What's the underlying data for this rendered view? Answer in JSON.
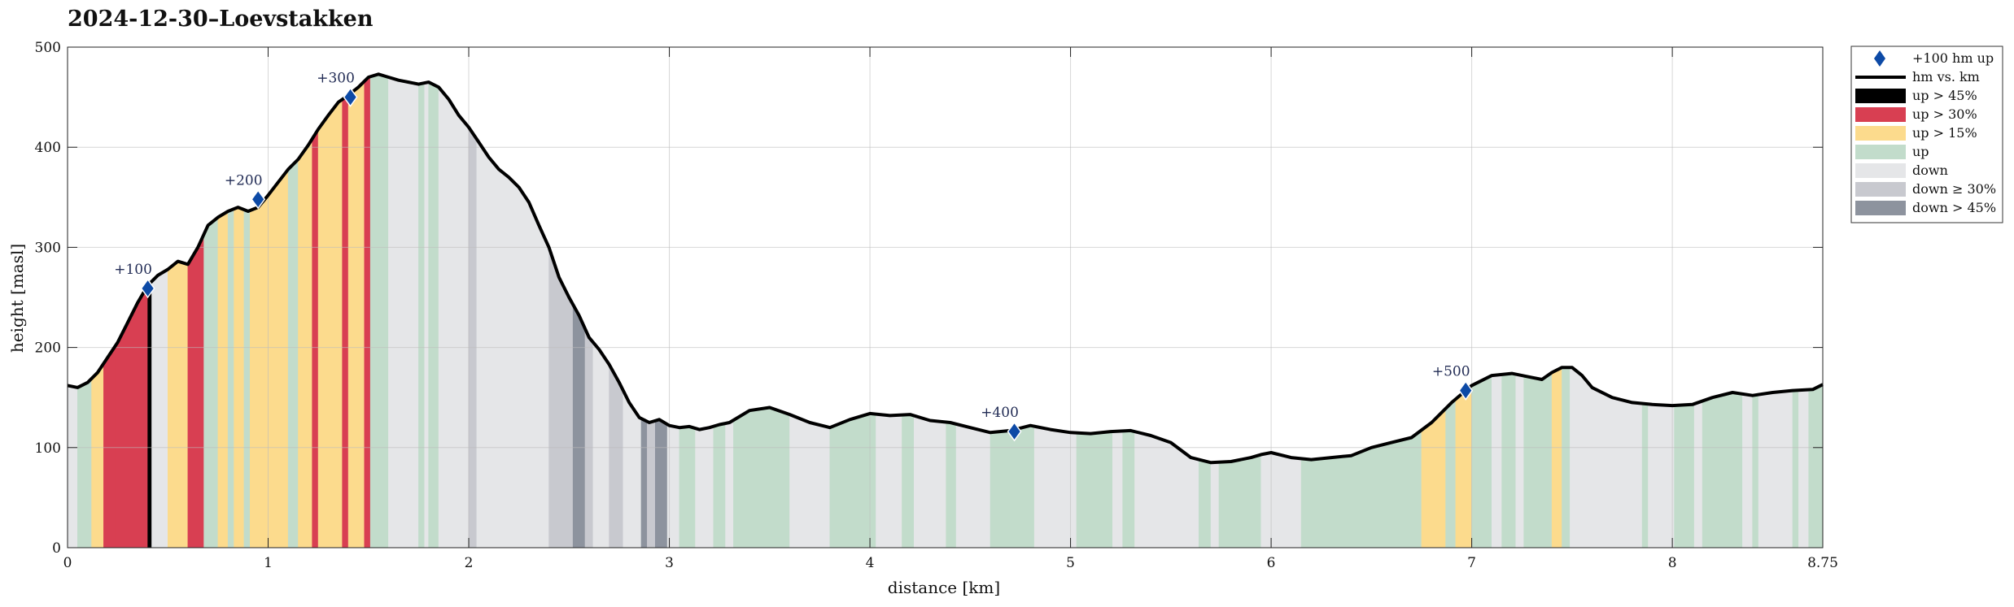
{
  "chart_data": {
    "type": "area",
    "title": "2024-12-30–Loevstakken",
    "xlabel": "distance [km]",
    "ylabel": "height [masl]",
    "xlim": [
      0,
      8.75
    ],
    "ylim": [
      0,
      500
    ],
    "xticks": [
      "0",
      "1",
      "2",
      "3",
      "4",
      "5",
      "6",
      "7",
      "8",
      "8.75"
    ],
    "yticks": [
      "0",
      "100",
      "200",
      "300",
      "400",
      "500"
    ],
    "grid": true,
    "legend_position": "outside-right-top",
    "legend": [
      {
        "label": "+100 hm up",
        "kind": "marker",
        "color": "#0d4aa6"
      },
      {
        "label": "hm vs. km",
        "kind": "line",
        "color": "#000000"
      },
      {
        "label": "up > 45%",
        "kind": "patch",
        "color": "#000000"
      },
      {
        "label": "up > 30%",
        "kind": "patch",
        "color": "#d83f52"
      },
      {
        "label": "up > 15%",
        "kind": "patch",
        "color": "#fcdb8d"
      },
      {
        "label": "up",
        "kind": "patch",
        "color": "#c2dccb"
      },
      {
        "label": "down",
        "kind": "patch",
        "color": "#e5e6e8"
      },
      {
        "label": "down ≥ 30%",
        "kind": "patch",
        "color": "#c8c9cf"
      },
      {
        "label": "down > 45%",
        "kind": "patch",
        "color": "#8d939e"
      }
    ],
    "series": [
      {
        "name": "hm vs. km",
        "x": [
          0,
          0.05,
          0.1,
          0.15,
          0.2,
          0.25,
          0.3,
          0.35,
          0.4,
          0.45,
          0.5,
          0.55,
          0.6,
          0.65,
          0.7,
          0.75,
          0.8,
          0.85,
          0.9,
          0.95,
          1.0,
          1.05,
          1.1,
          1.15,
          1.2,
          1.25,
          1.3,
          1.35,
          1.4,
          1.45,
          1.5,
          1.55,
          1.6,
          1.65,
          1.7,
          1.75,
          1.8,
          1.85,
          1.9,
          1.95,
          2.0,
          2.05,
          2.1,
          2.15,
          2.2,
          2.25,
          2.3,
          2.35,
          2.4,
          2.45,
          2.5,
          2.55,
          2.6,
          2.65,
          2.7,
          2.75,
          2.8,
          2.85,
          2.9,
          2.95,
          3.0,
          3.05,
          3.1,
          3.15,
          3.2,
          3.25,
          3.3,
          3.4,
          3.5,
          3.6,
          3.7,
          3.8,
          3.9,
          4.0,
          4.1,
          4.2,
          4.3,
          4.4,
          4.5,
          4.6,
          4.7,
          4.8,
          4.9,
          5.0,
          5.1,
          5.2,
          5.3,
          5.4,
          5.5,
          5.6,
          5.7,
          5.8,
          5.9,
          5.95,
          6.0,
          6.1,
          6.2,
          6.3,
          6.4,
          6.5,
          6.6,
          6.7,
          6.8,
          6.9,
          7.0,
          7.1,
          7.2,
          7.3,
          7.35,
          7.4,
          7.45,
          7.5,
          7.55,
          7.6,
          7.7,
          7.8,
          7.9,
          8.0,
          8.1,
          8.2,
          8.3,
          8.4,
          8.5,
          8.6,
          8.7,
          8.75
        ],
        "y": [
          162,
          160,
          165,
          175,
          190,
          205,
          225,
          245,
          262,
          272,
          278,
          286,
          283,
          300,
          322,
          330,
          336,
          340,
          336,
          340,
          352,
          365,
          378,
          388,
          402,
          418,
          432,
          445,
          452,
          460,
          470,
          473,
          470,
          467,
          465,
          463,
          465,
          460,
          448,
          432,
          420,
          405,
          390,
          378,
          370,
          360,
          345,
          322,
          300,
          270,
          250,
          232,
          210,
          198,
          183,
          165,
          145,
          130,
          125,
          128,
          122,
          120,
          121,
          118,
          120,
          123,
          125,
          137,
          140,
          133,
          125,
          120,
          128,
          134,
          132,
          133,
          127,
          125,
          120,
          115,
          117,
          122,
          118,
          115,
          114,
          116,
          117,
          112,
          105,
          90,
          85,
          86,
          90,
          93,
          95,
          90,
          88,
          90,
          92,
          100,
          105,
          110,
          125,
          145,
          162,
          172,
          174,
          170,
          168,
          175,
          180,
          180,
          172,
          160,
          150,
          145,
          143,
          142,
          143,
          150,
          155,
          152,
          155,
          157,
          158,
          163
        ]
      }
    ],
    "segments": [
      {
        "x0": 0.0,
        "x1": 0.05,
        "cat": "down"
      },
      {
        "x0": 0.05,
        "x1": 0.12,
        "cat": "up"
      },
      {
        "x0": 0.12,
        "x1": 0.18,
        "cat": "up > 15%"
      },
      {
        "x0": 0.18,
        "x1": 0.24,
        "cat": "up > 30%"
      },
      {
        "x0": 0.24,
        "x1": 0.4,
        "cat": "up > 30%"
      },
      {
        "x0": 0.4,
        "x1": 0.42,
        "cat": "up > 45%"
      },
      {
        "x0": 0.42,
        "x1": 0.5,
        "cat": "down"
      },
      {
        "x0": 0.5,
        "x1": 0.6,
        "cat": "up > 15%"
      },
      {
        "x0": 0.6,
        "x1": 0.68,
        "cat": "up > 30%"
      },
      {
        "x0": 0.68,
        "x1": 0.75,
        "cat": "up"
      },
      {
        "x0": 0.75,
        "x1": 0.8,
        "cat": "up > 15%"
      },
      {
        "x0": 0.8,
        "x1": 0.83,
        "cat": "up"
      },
      {
        "x0": 0.83,
        "x1": 0.88,
        "cat": "up > 15%"
      },
      {
        "x0": 0.88,
        "x1": 0.91,
        "cat": "up"
      },
      {
        "x0": 0.91,
        "x1": 1.1,
        "cat": "up > 15%"
      },
      {
        "x0": 1.1,
        "x1": 1.15,
        "cat": "up"
      },
      {
        "x0": 1.15,
        "x1": 1.22,
        "cat": "up > 15%"
      },
      {
        "x0": 1.22,
        "x1": 1.25,
        "cat": "up > 30%"
      },
      {
        "x0": 1.25,
        "x1": 1.37,
        "cat": "up > 15%"
      },
      {
        "x0": 1.37,
        "x1": 1.4,
        "cat": "up > 30%"
      },
      {
        "x0": 1.4,
        "x1": 1.48,
        "cat": "up > 15%"
      },
      {
        "x0": 1.48,
        "x1": 1.51,
        "cat": "up > 30%"
      },
      {
        "x0": 1.51,
        "x1": 1.6,
        "cat": "up"
      },
      {
        "x0": 1.6,
        "x1": 1.75,
        "cat": "down"
      },
      {
        "x0": 1.75,
        "x1": 1.78,
        "cat": "up"
      },
      {
        "x0": 1.78,
        "x1": 1.8,
        "cat": "down"
      },
      {
        "x0": 1.8,
        "x1": 1.85,
        "cat": "up"
      },
      {
        "x0": 1.85,
        "x1": 2.0,
        "cat": "down"
      },
      {
        "x0": 2.0,
        "x1": 2.04,
        "cat": "down ≥ 30%"
      },
      {
        "x0": 2.04,
        "x1": 2.4,
        "cat": "down"
      },
      {
        "x0": 2.4,
        "x1": 2.52,
        "cat": "down ≥ 30%"
      },
      {
        "x0": 2.52,
        "x1": 2.58,
        "cat": "down > 45%"
      },
      {
        "x0": 2.58,
        "x1": 2.62,
        "cat": "down ≥ 30%"
      },
      {
        "x0": 2.62,
        "x1": 2.7,
        "cat": "down"
      },
      {
        "x0": 2.7,
        "x1": 2.77,
        "cat": "down ≥ 30%"
      },
      {
        "x0": 2.77,
        "x1": 2.86,
        "cat": "down"
      },
      {
        "x0": 2.86,
        "x1": 2.89,
        "cat": "down > 45%"
      },
      {
        "x0": 2.89,
        "x1": 2.93,
        "cat": "down ≥ 30%"
      },
      {
        "x0": 2.93,
        "x1": 2.99,
        "cat": "down > 45%"
      },
      {
        "x0": 2.99,
        "x1": 3.05,
        "cat": "down"
      },
      {
        "x0": 3.05,
        "x1": 3.13,
        "cat": "up"
      },
      {
        "x0": 3.13,
        "x1": 3.22,
        "cat": "down"
      },
      {
        "x0": 3.22,
        "x1": 3.28,
        "cat": "up"
      },
      {
        "x0": 3.28,
        "x1": 3.32,
        "cat": "down"
      },
      {
        "x0": 3.32,
        "x1": 3.6,
        "cat": "up"
      },
      {
        "x0": 3.6,
        "x1": 3.8,
        "cat": "down"
      },
      {
        "x0": 3.8,
        "x1": 4.03,
        "cat": "up"
      },
      {
        "x0": 4.03,
        "x1": 4.16,
        "cat": "down"
      },
      {
        "x0": 4.16,
        "x1": 4.22,
        "cat": "up"
      },
      {
        "x0": 4.22,
        "x1": 4.38,
        "cat": "down"
      },
      {
        "x0": 4.38,
        "x1": 4.43,
        "cat": "up"
      },
      {
        "x0": 4.43,
        "x1": 4.6,
        "cat": "down"
      },
      {
        "x0": 4.6,
        "x1": 4.82,
        "cat": "up"
      },
      {
        "x0": 4.82,
        "x1": 5.03,
        "cat": "down"
      },
      {
        "x0": 5.03,
        "x1": 5.21,
        "cat": "up"
      },
      {
        "x0": 5.21,
        "x1": 5.26,
        "cat": "down"
      },
      {
        "x0": 5.26,
        "x1": 5.32,
        "cat": "up"
      },
      {
        "x0": 5.32,
        "x1": 5.64,
        "cat": "down"
      },
      {
        "x0": 5.64,
        "x1": 5.7,
        "cat": "up"
      },
      {
        "x0": 5.7,
        "x1": 5.74,
        "cat": "down"
      },
      {
        "x0": 5.74,
        "x1": 5.95,
        "cat": "up"
      },
      {
        "x0": 5.95,
        "x1": 6.15,
        "cat": "down"
      },
      {
        "x0": 6.15,
        "x1": 6.75,
        "cat": "up"
      },
      {
        "x0": 6.75,
        "x1": 6.87,
        "cat": "up > 15%"
      },
      {
        "x0": 6.87,
        "x1": 6.92,
        "cat": "up"
      },
      {
        "x0": 6.92,
        "x1": 7.0,
        "cat": "up > 15%"
      },
      {
        "x0": 7.0,
        "x1": 7.1,
        "cat": "up"
      },
      {
        "x0": 7.1,
        "x1": 7.15,
        "cat": "down"
      },
      {
        "x0": 7.15,
        "x1": 7.22,
        "cat": "up"
      },
      {
        "x0": 7.22,
        "x1": 7.26,
        "cat": "down"
      },
      {
        "x0": 7.26,
        "x1": 7.4,
        "cat": "up"
      },
      {
        "x0": 7.4,
        "x1": 7.45,
        "cat": "up > 15%"
      },
      {
        "x0": 7.45,
        "x1": 7.49,
        "cat": "up"
      },
      {
        "x0": 7.49,
        "x1": 7.85,
        "cat": "down"
      },
      {
        "x0": 7.85,
        "x1": 7.88,
        "cat": "up"
      },
      {
        "x0": 7.88,
        "x1": 8.01,
        "cat": "down"
      },
      {
        "x0": 8.01,
        "x1": 8.11,
        "cat": "up"
      },
      {
        "x0": 8.11,
        "x1": 8.15,
        "cat": "down"
      },
      {
        "x0": 8.15,
        "x1": 8.35,
        "cat": "up"
      },
      {
        "x0": 8.35,
        "x1": 8.4,
        "cat": "down"
      },
      {
        "x0": 8.4,
        "x1": 8.43,
        "cat": "up"
      },
      {
        "x0": 8.43,
        "x1": 8.6,
        "cat": "down"
      },
      {
        "x0": 8.6,
        "x1": 8.63,
        "cat": "up"
      },
      {
        "x0": 8.63,
        "x1": 8.68,
        "cat": "down"
      },
      {
        "x0": 8.68,
        "x1": 8.75,
        "cat": "up"
      }
    ],
    "markers": [
      {
        "x": 0.4,
        "y": 259,
        "label": "+100"
      },
      {
        "x": 0.95,
        "y": 348,
        "label": "+200"
      },
      {
        "x": 1.41,
        "y": 450,
        "label": "+300"
      },
      {
        "x": 4.72,
        "y": 116,
        "label": "+400"
      },
      {
        "x": 6.97,
        "y": 157,
        "label": "+500"
      }
    ]
  }
}
